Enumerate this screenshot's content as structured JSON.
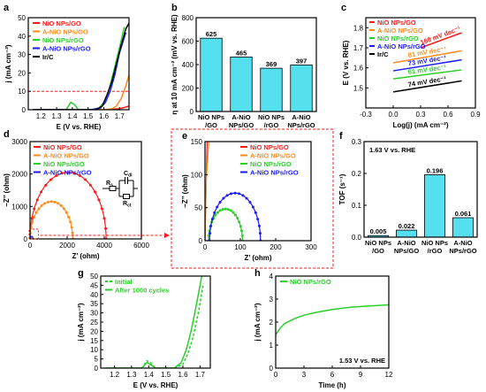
{
  "panel_labels": [
    "a",
    "b",
    "c",
    "d",
    "e",
    "f",
    "g",
    "h"
  ],
  "chart_data": [
    {
      "panel": "a",
      "type": "line",
      "xlabel": "E (V vs. RHE)",
      "ylabel": "j (mA cm⁻²)",
      "xlim": [
        1.12,
        1.76
      ],
      "ylim": [
        0,
        50
      ],
      "xticks": [
        1.2,
        1.3,
        1.4,
        1.5,
        1.6,
        1.7
      ],
      "yticks": [
        0,
        10,
        20,
        30,
        40,
        50
      ],
      "reference_line": 10,
      "legend_position": "top-left",
      "series": [
        {
          "name": "NiO NPs/GO",
          "color": "#ff1a1a",
          "x": [
            1.15,
            1.55,
            1.6,
            1.65,
            1.7,
            1.73,
            1.76
          ],
          "y": [
            0,
            0,
            0,
            0.2,
            0.6,
            1.2,
            2.0
          ]
        },
        {
          "name": "A-NiO NPs/GO",
          "color": "#ff8c1a",
          "x": [
            1.15,
            1.6,
            1.65,
            1.68,
            1.71,
            1.74,
            1.76
          ],
          "y": [
            0,
            0,
            0.5,
            2,
            6,
            13,
            19
          ]
        },
        {
          "name": "NiO NPs/rGO",
          "color": "#2ad02a",
          "x": [
            1.15,
            1.36,
            1.39,
            1.41,
            1.44,
            1.52,
            1.57,
            1.6,
            1.63,
            1.66,
            1.7,
            1.73
          ],
          "y": [
            0,
            0,
            4,
            3,
            0,
            0,
            1,
            4,
            10,
            20,
            34,
            45
          ]
        },
        {
          "name": "A-NiO NPs/rGO",
          "color": "#1a1aff",
          "x": [
            1.15,
            1.52,
            1.58,
            1.61,
            1.64,
            1.67,
            1.7,
            1.74
          ],
          "y": [
            0,
            0,
            1,
            4,
            10,
            19,
            31,
            42
          ]
        },
        {
          "name": "Ir/C",
          "color": "#000000",
          "x": [
            1.15,
            1.55,
            1.59,
            1.62,
            1.65,
            1.68,
            1.71,
            1.74,
            1.76
          ],
          "y": [
            0,
            0,
            2,
            8,
            15,
            25,
            35,
            44,
            47
          ]
        }
      ]
    },
    {
      "panel": "b",
      "type": "bar",
      "ylabel": "η at 10 mA cm⁻² (mV vs. RHE)",
      "ylim": [
        0,
        800
      ],
      "yticks": [
        0,
        200,
        400,
        600,
        800
      ],
      "color": "#55e0f0",
      "categories": [
        [
          "NiO NPs",
          "/GO"
        ],
        [
          "A-NiO",
          "NPs/GO"
        ],
        [
          "NiO NPs",
          "/rGO"
        ],
        [
          "A-NiO",
          "NPs/rGO"
        ]
      ],
      "values": [
        625,
        465,
        369,
        397
      ],
      "data_labels": [
        "625",
        "465",
        "369",
        "397"
      ]
    },
    {
      "panel": "c",
      "type": "line",
      "xlabel": "Log(j) (mA cm⁻²)",
      "ylabel": "E (V vs. RHE)",
      "xlim": [
        -0.3,
        0.9
      ],
      "ylim": [
        1.4,
        1.85
      ],
      "xticks": [
        -0.3,
        0.0,
        0.3,
        0.6,
        0.9
      ],
      "yticks": [
        1.5,
        1.6,
        1.7,
        1.8
      ],
      "legend_position": "top-left",
      "series": [
        {
          "name": "NiO NPs/GO",
          "color": "#ff1a1a",
          "x": [
            0.3,
            0.75
          ],
          "y": [
            1.7,
            1.775
          ],
          "annotation": "168 mV dec⁻¹"
        },
        {
          "name": "A-NiO NPs/GO",
          "color": "#ff8c1a",
          "x": [
            0.0,
            0.75
          ],
          "y": [
            1.625,
            1.685
          ],
          "annotation": "81 mV dec⁻¹"
        },
        {
          "name": "NiO NPs/rGO",
          "color": "#2ad02a",
          "x": [
            0.0,
            0.75
          ],
          "y": [
            1.545,
            1.59
          ],
          "annotation": "61 mV dec⁻¹"
        },
        {
          "name": "A-NiO NPs/rGO",
          "color": "#1a1aff",
          "x": [
            0.0,
            0.75
          ],
          "y": [
            1.585,
            1.64
          ],
          "annotation": "73 mV dec⁻¹"
        },
        {
          "name": "Ir/C",
          "color": "#000000",
          "x": [
            0.0,
            0.75
          ],
          "y": [
            1.48,
            1.535
          ],
          "annotation": "74 mV dec⁻¹"
        }
      ]
    },
    {
      "panel": "d",
      "type": "scatter",
      "xlabel": "Z’ (ohm)",
      "ylabel": "−Z’’ (ohm)",
      "xlim": [
        0,
        6000
      ],
      "ylim": [
        0,
        3000
      ],
      "xticks": [
        0,
        2000,
        4000,
        6000
      ],
      "yticks": [
        0,
        1000,
        2000,
        3000
      ],
      "legend_position": "top-right",
      "circuit_labels": {
        "r": "R",
        "r_s": "s",
        "c": "C",
        "c_sub": "dl",
        "rct": "R",
        "rct_sub": "ct"
      },
      "series": [
        {
          "name": "NiO NPs/GO",
          "color": "#ff1a1a",
          "center": 2050,
          "radius": 2050
        },
        {
          "name": "A-NiO NPs/GO",
          "color": "#ff8c1a",
          "center": 1150,
          "radius": 1150
        },
        {
          "name": "NiO NPs/rGO",
          "color": "#2ad02a",
          "center": 50,
          "radius": 50
        },
        {
          "name": "A-NiO NPs/rGO",
          "color": "#1a1aff",
          "center": 80,
          "radius": 80
        }
      ]
    },
    {
      "panel": "e",
      "type": "scatter",
      "xlabel": "Z’ (ohm)",
      "ylabel": "−Z’’ (ohm)",
      "xlim": [
        0,
        300
      ],
      "ylim": [
        0,
        150
      ],
      "xticks": [
        0,
        100,
        200,
        300
      ],
      "yticks": [
        0,
        50,
        100,
        150
      ],
      "legend_position": "top-right",
      "series": [
        {
          "name": "NiO NPs/GO",
          "color": "#ff1a1a",
          "center": 2050,
          "radius": 2050
        },
        {
          "name": "A-NiO NPs/GO",
          "color": "#ff8c1a",
          "center": 1150,
          "radius": 1150
        },
        {
          "name": "NiO NPs/rGO",
          "color": "#2ad02a",
          "center": 58,
          "radius": 48
        },
        {
          "name": "A-NiO NPs/rGO",
          "color": "#1a1aff",
          "center": 85,
          "radius": 72
        }
      ]
    },
    {
      "panel": "f",
      "type": "bar",
      "ylabel": "TOF (s⁻¹)",
      "ylim": [
        0,
        0.3
      ],
      "yticks": [
        0.0,
        0.1,
        0.2,
        0.3
      ],
      "color": "#55e0f0",
      "annotation": "1.63 V vs. RHE",
      "categories": [
        [
          "NiO NPs",
          "/GO"
        ],
        [
          "A-NiO",
          "NPs/GO"
        ],
        [
          "NiO NPs",
          "/rGO"
        ],
        [
          "A-NiO",
          "NPs/rGO"
        ]
      ],
      "values": [
        0.005,
        0.022,
        0.196,
        0.061
      ],
      "data_labels": [
        "0.005",
        "0.022",
        "0.196",
        "0.061"
      ]
    },
    {
      "panel": "g",
      "type": "line",
      "xlabel": "E (V vs. RHE)",
      "ylabel": "j (mA cm⁻²)",
      "xlim": [
        1.12,
        1.76
      ],
      "ylim": [
        0,
        50
      ],
      "xticks": [
        1.2,
        1.3,
        1.4,
        1.5,
        1.6,
        1.7
      ],
      "yticks": [
        0,
        5,
        10,
        15,
        20,
        25,
        30,
        35,
        40,
        45,
        50
      ],
      "legend_position": "top-left",
      "series": [
        {
          "name": "Initial",
          "color": "#2ad02a",
          "dashed": true,
          "x": [
            1.15,
            1.36,
            1.39,
            1.41,
            1.44,
            1.55,
            1.6,
            1.63,
            1.66,
            1.69,
            1.72
          ],
          "y": [
            0,
            0,
            4,
            3,
            0,
            0,
            2,
            8,
            17,
            30,
            46
          ]
        },
        {
          "name": "After 1000 cycles",
          "color": "#2ad02a",
          "dashed": false,
          "x": [
            1.15,
            1.36,
            1.39,
            1.41,
            1.44,
            1.55,
            1.59,
            1.62,
            1.65,
            1.68,
            1.71
          ],
          "y": [
            0,
            0,
            3,
            2,
            0,
            0,
            3,
            10,
            21,
            35,
            50
          ]
        }
      ]
    },
    {
      "panel": "h",
      "type": "line",
      "xlabel": "Time (h)",
      "ylabel": "j (mA cm⁻²)",
      "xlim": [
        0,
        12
      ],
      "ylim": [
        0,
        4
      ],
      "xticks": [
        0,
        3,
        6,
        9,
        12
      ],
      "yticks": [
        0,
        1,
        2,
        3,
        4
      ],
      "annotation": "1.53 V vs. RHE",
      "legend_position": "top-left",
      "series": [
        {
          "name": "NiO NPs/rGO",
          "color": "#2ad02a",
          "x": [
            0,
            0.5,
            1,
            2,
            3,
            4,
            6,
            8,
            10,
            12
          ],
          "y": [
            1.45,
            1.75,
            1.95,
            2.15,
            2.3,
            2.4,
            2.55,
            2.65,
            2.7,
            2.75
          ]
        }
      ]
    }
  ]
}
